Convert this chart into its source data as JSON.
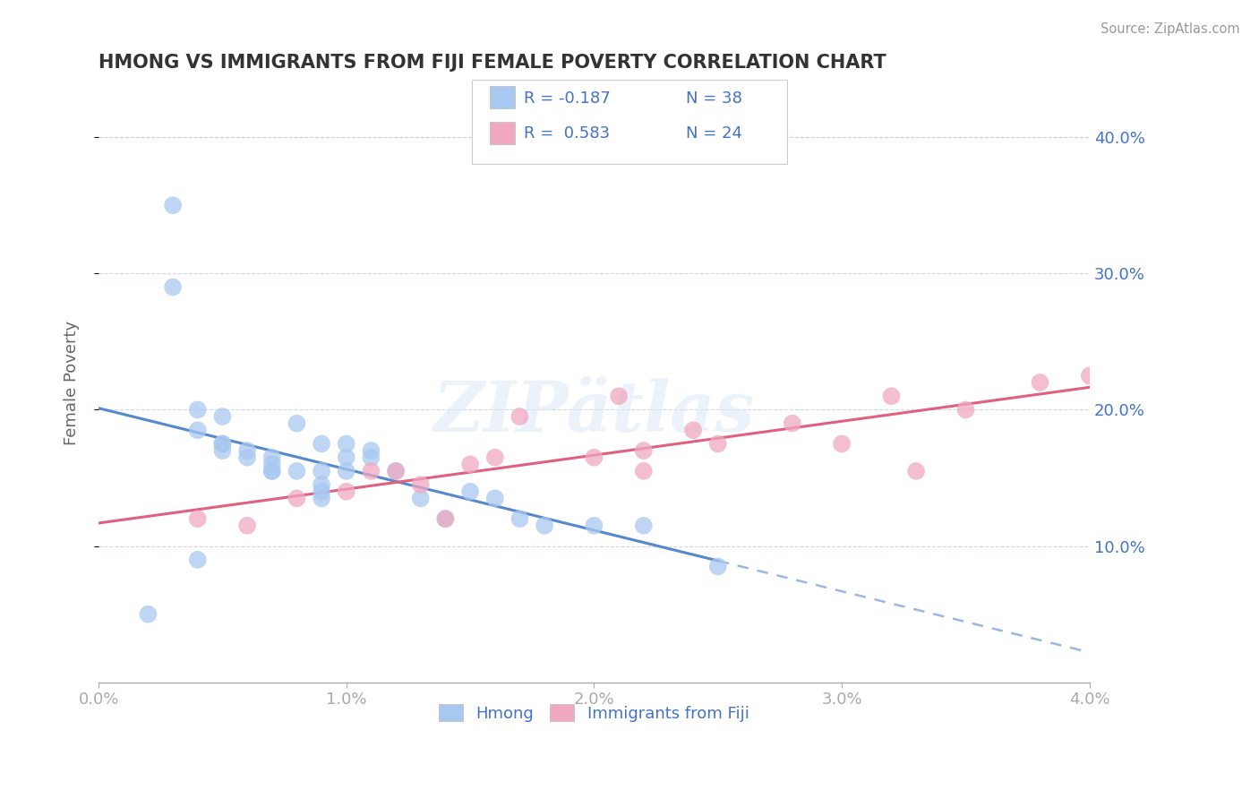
{
  "title": "HMONG VS IMMIGRANTS FROM FIJI FEMALE POVERTY CORRELATION CHART",
  "source": "Source: ZipAtlas.com",
  "ylabel": "Female Poverty",
  "xlim": [
    0.0,
    0.04
  ],
  "ylim": [
    0.0,
    0.44
  ],
  "hmong_color": "#a8c8f0",
  "fiji_color": "#f0a8c0",
  "hmong_line_color": "#5588cc",
  "fiji_line_color": "#e06080",
  "background_color": "#ffffff",
  "grid_color": "#c8d4e8",
  "watermark": "ZIPAtlas",
  "hmong_x": [
    0.002,
    0.003,
    0.003,
    0.004,
    0.004,
    0.005,
    0.005,
    0.005,
    0.005,
    0.006,
    0.006,
    0.007,
    0.007,
    0.007,
    0.007,
    0.008,
    0.008,
    0.009,
    0.009,
    0.009,
    0.009,
    0.009,
    0.01,
    0.01,
    0.01,
    0.011,
    0.011,
    0.012,
    0.013,
    0.014,
    0.015,
    0.016,
    0.017,
    0.018,
    0.02,
    0.022,
    0.025,
    0.004
  ],
  "hmong_y": [
    0.05,
    0.35,
    0.29,
    0.2,
    0.185,
    0.195,
    0.175,
    0.17,
    0.175,
    0.165,
    0.17,
    0.165,
    0.155,
    0.16,
    0.155,
    0.19,
    0.155,
    0.145,
    0.155,
    0.135,
    0.14,
    0.175,
    0.165,
    0.155,
    0.175,
    0.17,
    0.165,
    0.155,
    0.135,
    0.12,
    0.14,
    0.135,
    0.12,
    0.115,
    0.115,
    0.115,
    0.085,
    0.09
  ],
  "fiji_x": [
    0.004,
    0.006,
    0.008,
    0.01,
    0.011,
    0.012,
    0.013,
    0.015,
    0.016,
    0.017,
    0.02,
    0.021,
    0.022,
    0.024,
    0.025,
    0.028,
    0.03,
    0.032,
    0.033,
    0.035,
    0.038,
    0.04,
    0.022,
    0.014
  ],
  "fiji_y": [
    0.12,
    0.115,
    0.135,
    0.14,
    0.155,
    0.155,
    0.145,
    0.16,
    0.165,
    0.195,
    0.165,
    0.21,
    0.17,
    0.185,
    0.175,
    0.19,
    0.175,
    0.21,
    0.155,
    0.2,
    0.22,
    0.225,
    0.155,
    0.12
  ],
  "legend_r1": "R = -0.187",
  "legend_n1": "N = 38",
  "legend_r2": "R =  0.583",
  "legend_n2": "N = 24",
  "text_color": "#4472c4",
  "title_color": "#333333",
  "source_color": "#999999"
}
